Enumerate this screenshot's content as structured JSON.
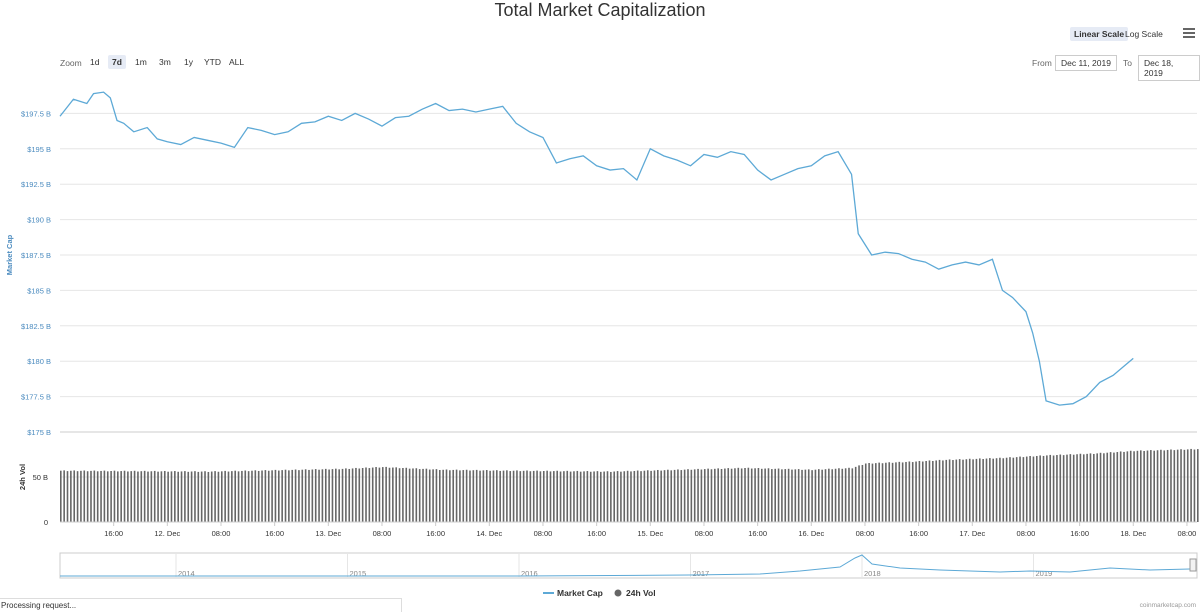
{
  "header": {
    "title": "Total Market Capitalization",
    "scale_linear": "Linear Scale",
    "scale_log": "Log Scale",
    "zoom_label": "Zoom",
    "zoom_buttons": [
      "1d",
      "7d",
      "1m",
      "3m",
      "1y",
      "YTD",
      "ALL"
    ],
    "zoom_selected": "7d",
    "from_label": "From",
    "from_value": "Dec 11, 2019",
    "to_label": "To",
    "to_value": "Dec 18, 2019"
  },
  "status": {
    "text": "Processing request...",
    "credit": "coinmarketcap.com"
  },
  "colors": {
    "price_line": "#5da9d6",
    "volume_bar": "#666666",
    "grid": "#e6e6e6"
  },
  "chart_data": {
    "type": "line",
    "title": "Total Market Capitalization",
    "y_axis_label": "Market Cap",
    "volume_axis_label": "24h Vol",
    "ylim": [
      175,
      200
    ],
    "y_ticks": [
      "$175 B",
      "$177.5 B",
      "$180 B",
      "$182.5 B",
      "$185 B",
      "$187.5 B",
      "$190 B",
      "$192.5 B",
      "$195 B",
      "$197.5 B"
    ],
    "volume_ticks": [
      "0",
      "50 B"
    ],
    "x_ticks": [
      "16:00",
      "12. Dec",
      "08:00",
      "16:00",
      "13. Dec",
      "08:00",
      "16:00",
      "14. Dec",
      "08:00",
      "16:00",
      "15. Dec",
      "08:00",
      "16:00",
      "16. Dec",
      "08:00",
      "16:00",
      "17. Dec",
      "08:00",
      "16:00",
      "18. Dec",
      "08:00"
    ],
    "x_start_hours": 8,
    "x_end_hours": 177.5,
    "market_cap": {
      "name": "Market Cap",
      "points": [
        [
          8,
          197.3
        ],
        [
          10,
          198.5
        ],
        [
          12,
          198.2
        ],
        [
          13,
          198.9
        ],
        [
          14.5,
          199.0
        ],
        [
          15.5,
          198.6
        ],
        [
          16.5,
          197.0
        ],
        [
          17.5,
          196.8
        ],
        [
          19,
          196.2
        ],
        [
          21,
          196.5
        ],
        [
          22.5,
          195.7
        ],
        [
          24,
          195.5
        ],
        [
          26,
          195.3
        ],
        [
          28,
          195.8
        ],
        [
          30,
          195.6
        ],
        [
          32,
          195.4
        ],
        [
          34,
          195.1
        ],
        [
          36,
          196.5
        ],
        [
          38,
          196.3
        ],
        [
          40,
          196.0
        ],
        [
          42,
          196.2
        ],
        [
          44,
          196.8
        ],
        [
          46,
          196.9
        ],
        [
          48,
          197.3
        ],
        [
          50,
          197.0
        ],
        [
          52,
          197.5
        ],
        [
          54,
          197.1
        ],
        [
          56,
          196.6
        ],
        [
          58,
          197.2
        ],
        [
          60,
          197.3
        ],
        [
          62,
          197.8
        ],
        [
          64,
          198.2
        ],
        [
          66,
          197.7
        ],
        [
          68,
          197.8
        ],
        [
          70,
          197.6
        ],
        [
          72,
          197.8
        ],
        [
          74,
          198.0
        ],
        [
          76,
          196.8
        ],
        [
          78,
          196.2
        ],
        [
          80,
          195.8
        ],
        [
          82,
          194.0
        ],
        [
          84,
          194.3
        ],
        [
          86,
          194.5
        ],
        [
          88,
          193.8
        ],
        [
          90,
          193.5
        ],
        [
          92,
          193.6
        ],
        [
          94,
          192.8
        ],
        [
          96,
          195.0
        ],
        [
          98,
          194.5
        ],
        [
          100,
          194.2
        ],
        [
          102,
          193.8
        ],
        [
          104,
          194.6
        ],
        [
          106,
          194.4
        ],
        [
          108,
          194.8
        ],
        [
          110,
          194.6
        ],
        [
          112,
          193.5
        ],
        [
          114,
          192.8
        ],
        [
          116,
          193.2
        ],
        [
          118,
          193.6
        ],
        [
          120,
          193.8
        ],
        [
          122,
          194.5
        ],
        [
          124,
          194.8
        ],
        [
          126,
          193.2
        ],
        [
          127,
          189.0
        ],
        [
          129,
          187.5
        ],
        [
          131,
          187.7
        ],
        [
          133,
          187.6
        ],
        [
          135,
          187.2
        ],
        [
          137,
          187.0
        ],
        [
          139,
          186.5
        ],
        [
          141,
          186.8
        ],
        [
          143,
          187.0
        ],
        [
          145,
          186.8
        ],
        [
          147,
          187.2
        ],
        [
          148.5,
          185.0
        ],
        [
          150,
          184.5
        ],
        [
          152,
          183.5
        ],
        [
          153,
          182.0
        ],
        [
          154,
          180.0
        ],
        [
          155,
          177.2
        ],
        [
          157,
          176.9
        ],
        [
          159,
          177.0
        ],
        [
          161,
          177.5
        ],
        [
          163,
          178.5
        ],
        [
          165,
          179.0
        ],
        [
          167,
          179.8
        ],
        [
          168,
          180.2
        ]
      ]
    },
    "volume": {
      "name": "24h Vol",
      "vlim": [
        0,
        100
      ],
      "levels": [
        [
          8,
          57
        ],
        [
          30,
          56
        ],
        [
          40,
          57.5
        ],
        [
          50,
          59
        ],
        [
          56,
          61
        ],
        [
          65,
          58
        ],
        [
          75,
          57
        ],
        [
          90,
          56
        ],
        [
          100,
          58
        ],
        [
          110,
          60
        ],
        [
          120,
          58
        ],
        [
          126,
          60
        ],
        [
          128,
          65
        ],
        [
          135,
          67
        ],
        [
          140,
          69
        ],
        [
          148,
          71
        ],
        [
          155,
          74
        ],
        [
          162,
          76
        ],
        [
          168,
          79
        ],
        [
          177.5,
          81
        ]
      ]
    },
    "navigator": {
      "x_ticks": [
        "2014",
        "2015",
        "2016",
        "2017",
        "2018",
        "2019"
      ]
    },
    "legend": [
      "Market Cap",
      "24h Vol"
    ],
    "legend_position": "bottom-center"
  }
}
